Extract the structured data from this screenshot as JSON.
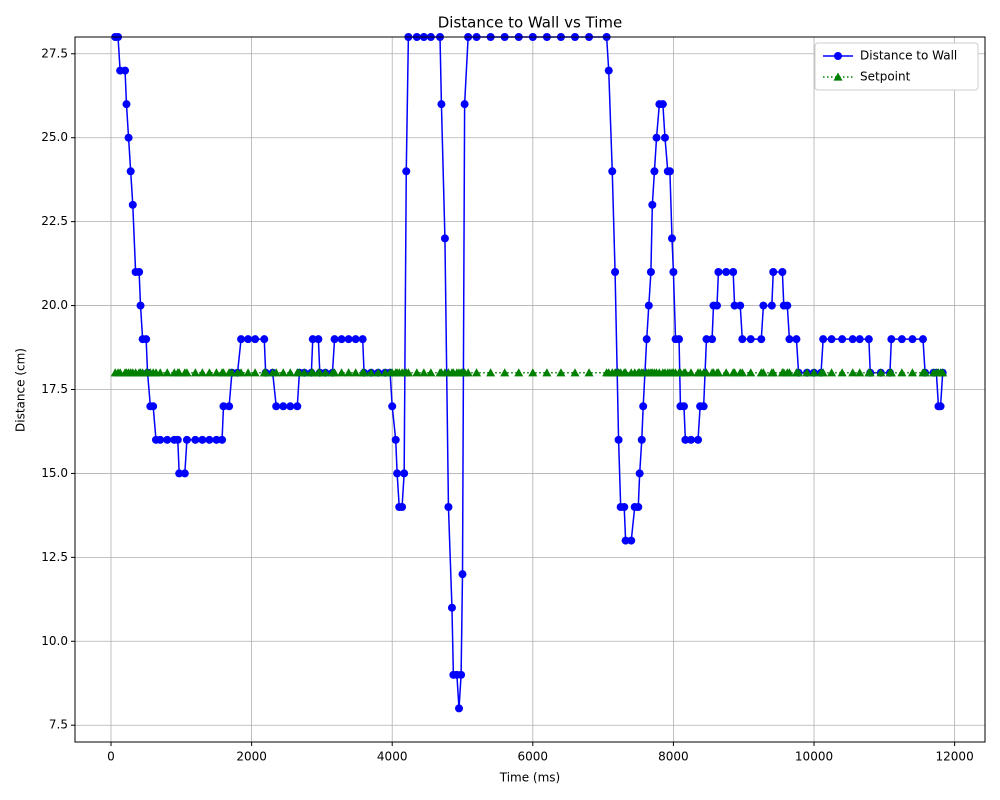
{
  "chart_data": {
    "type": "line",
    "title": "Distance to Wall vs Time",
    "x_label": "Time (ms)",
    "y_label": "Distance (cm)",
    "x": [
      60,
      100,
      130,
      200,
      220,
      250,
      280,
      310,
      350,
      400,
      420,
      450,
      500,
      520,
      560,
      600,
      640,
      700,
      800,
      900,
      950,
      970,
      1050,
      1080,
      1200,
      1300,
      1400,
      1500,
      1580,
      1600,
      1680,
      1720,
      1800,
      1850,
      1950,
      2050,
      2180,
      2200,
      2300,
      2350,
      2450,
      2550,
      2650,
      2680,
      2750,
      2850,
      2870,
      2950,
      2970,
      3050,
      3150,
      3180,
      3280,
      3380,
      3480,
      3580,
      3600,
      3700,
      3800,
      3900,
      3970,
      4000,
      4050,
      4070,
      4100,
      4140,
      4170,
      4200,
      4230,
      4350,
      4450,
      4550,
      4680,
      4700,
      4750,
      4800,
      4850,
      4870,
      4920,
      4950,
      4980,
      5000,
      5030,
      5080,
      5200,
      5400,
      5600,
      5800,
      6000,
      6200,
      6400,
      6600,
      6800,
      7050,
      7080,
      7130,
      7170,
      7200,
      7220,
      7250,
      7300,
      7320,
      7400,
      7450,
      7500,
      7520,
      7550,
      7570,
      7620,
      7650,
      7680,
      7700,
      7730,
      7760,
      7800,
      7850,
      7880,
      7920,
      7950,
      7980,
      8000,
      8030,
      8080,
      8100,
      8150,
      8170,
      8250,
      8350,
      8380,
      8430,
      8470,
      8550,
      8570,
      8620,
      8640,
      8750,
      8850,
      8870,
      8950,
      8980,
      9100,
      9250,
      9280,
      9400,
      9420,
      9550,
      9570,
      9620,
      9650,
      9750,
      9780,
      9900,
      10000,
      10100,
      10130,
      10250,
      10400,
      10550,
      10650,
      10780,
      10800,
      10950,
      11080,
      11100,
      11250,
      11400,
      11550,
      11580,
      11700,
      11740,
      11770,
      11800,
      11830
    ],
    "series": [
      {
        "name": "Distance to Wall",
        "color": "#0000ff",
        "marker": "circle",
        "linestyle": "solid",
        "values": [
          28,
          28,
          27,
          27,
          26,
          25,
          24,
          23,
          21,
          21,
          20,
          19,
          19,
          18,
          17,
          17,
          16,
          16,
          16,
          16,
          16,
          15,
          15,
          16,
          16,
          16,
          16,
          16,
          16,
          17,
          17,
          18,
          18,
          19,
          19,
          19,
          19,
          18,
          18,
          17,
          17,
          17,
          17,
          18,
          18,
          18,
          19,
          19,
          18,
          18,
          18,
          19,
          19,
          19,
          19,
          19,
          18,
          18,
          18,
          18,
          18,
          17,
          16,
          15,
          14,
          14,
          15,
          24,
          28,
          28,
          28,
          28,
          28,
          26,
          22,
          14,
          11,
          9,
          9,
          8,
          9,
          12,
          26,
          28,
          28,
          28,
          28,
          28,
          28,
          28,
          28,
          28,
          28,
          28,
          27,
          24,
          21,
          18,
          16,
          14,
          14,
          13,
          13,
          14,
          14,
          15,
          16,
          17,
          19,
          20,
          21,
          23,
          24,
          25,
          26,
          26,
          25,
          24,
          24,
          22,
          21,
          19,
          19,
          17,
          17,
          16,
          16,
          16,
          17,
          17,
          19,
          19,
          20,
          20,
          21,
          21,
          21,
          20,
          20,
          19,
          19,
          19,
          20,
          20,
          21,
          21,
          20,
          20,
          19,
          19,
          18,
          18,
          18,
          18,
          19,
          19,
          19,
          19,
          19,
          19,
          18,
          18,
          18,
          19,
          19,
          19,
          19,
          18,
          18,
          18,
          17,
          17,
          18
        ]
      },
      {
        "name": "Setpoint",
        "color": "#008000",
        "marker": "triangle",
        "linestyle": "dotted",
        "values": [
          18,
          18,
          18,
          18,
          18,
          18,
          18,
          18,
          18,
          18,
          18,
          18,
          18,
          18,
          18,
          18,
          18,
          18,
          18,
          18,
          18,
          18,
          18,
          18,
          18,
          18,
          18,
          18,
          18,
          18,
          18,
          18,
          18,
          18,
          18,
          18,
          18,
          18,
          18,
          18,
          18,
          18,
          18,
          18,
          18,
          18,
          18,
          18,
          18,
          18,
          18,
          18,
          18,
          18,
          18,
          18,
          18,
          18,
          18,
          18,
          18,
          18,
          18,
          18,
          18,
          18,
          18,
          18,
          18,
          18,
          18,
          18,
          18,
          18,
          18,
          18,
          18,
          18,
          18,
          18,
          18,
          18,
          18,
          18,
          18,
          18,
          18,
          18,
          18,
          18,
          18,
          18,
          18,
          18,
          18,
          18,
          18,
          18,
          18,
          18,
          18,
          18,
          18,
          18,
          18,
          18,
          18,
          18,
          18,
          18,
          18,
          18,
          18,
          18,
          18,
          18,
          18,
          18,
          18,
          18,
          18,
          18,
          18,
          18,
          18,
          18,
          18,
          18,
          18,
          18,
          18,
          18,
          18,
          18,
          18,
          18,
          18,
          18,
          18,
          18,
          18,
          18,
          18,
          18,
          18,
          18,
          18,
          18,
          18,
          18,
          18,
          18,
          18,
          18,
          18,
          18,
          18,
          18,
          18,
          18,
          18,
          18,
          18,
          18,
          18,
          18,
          18,
          18,
          18,
          18,
          18,
          18,
          18
        ]
      }
    ],
    "xlim": [
      -512,
      12432
    ],
    "ylim": [
      7.0,
      28.0
    ],
    "xticks": [
      0,
      2000,
      4000,
      6000,
      8000,
      10000,
      12000
    ],
    "yticks": [
      {
        "value": 7.5,
        "label": "7.5"
      },
      {
        "value": 10,
        "label": "10.0"
      },
      {
        "value": 12.5,
        "label": "12.5"
      },
      {
        "value": 15,
        "label": "15.0"
      },
      {
        "value": 17.5,
        "label": "17.5"
      },
      {
        "value": 20,
        "label": "20.0"
      },
      {
        "value": 22.5,
        "label": "22.5"
      },
      {
        "value": 25,
        "label": "25.0"
      },
      {
        "value": 27.5,
        "label": "27.5"
      }
    ],
    "grid": true,
    "legend": "upper right"
  }
}
